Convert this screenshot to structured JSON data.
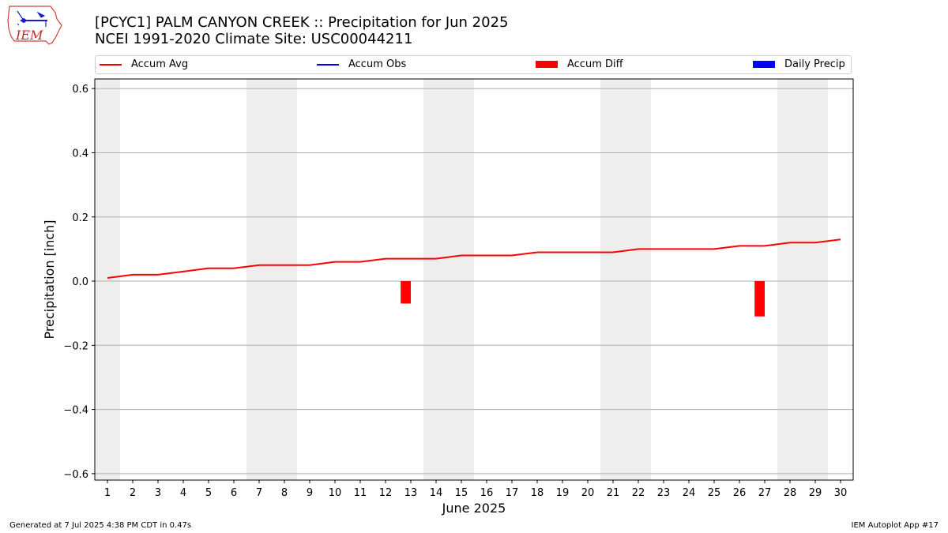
{
  "logo": {
    "text": "IEM"
  },
  "footer": {
    "generated": "Generated at 7 Jul 2025 4:38 PM CDT in 0.47s",
    "app": "IEM Autoplot App #17"
  },
  "colors": {
    "avg": "#ff0000",
    "obs": "#0000ff",
    "diff": "#ff0000",
    "daily": "#0000ff",
    "weekend": "#eeeeee",
    "grid": "#b0b0b0"
  },
  "chart_data": {
    "type": "line",
    "title": "[PCYC1] PALM CANYON CREEK :: Precipitation for Jun 2025",
    "subtitle": "NCEI 1991-2020 Climate Site: USC00044211",
    "xlabel": "June 2025",
    "ylabel": "Precipitation [inch]",
    "ylim": [
      -0.62,
      0.63
    ],
    "xlim": [
      0.5,
      30.5
    ],
    "yticks": [
      -0.6,
      -0.4,
      -0.2,
      0.0,
      0.2,
      0.4,
      0.6
    ],
    "ytick_labels": [
      "−0.6",
      "−0.4",
      "−0.2",
      "0.0",
      "0.2",
      "0.4",
      "0.6"
    ],
    "x": [
      1,
      2,
      3,
      4,
      5,
      6,
      7,
      8,
      9,
      10,
      11,
      12,
      13,
      14,
      15,
      16,
      17,
      18,
      19,
      20,
      21,
      22,
      23,
      24,
      25,
      26,
      27,
      28,
      29,
      30
    ],
    "xtick_labels": [
      "1",
      "2",
      "3",
      "4",
      "5",
      "6",
      "7",
      "8",
      "9",
      "10",
      "11",
      "12",
      "13",
      "14",
      "15",
      "16",
      "17",
      "18",
      "19",
      "20",
      "21",
      "22",
      "23",
      "24",
      "25",
      "26",
      "27",
      "28",
      "29",
      "30"
    ],
    "weekend_days": [
      1,
      7,
      8,
      14,
      15,
      21,
      22,
      28,
      29
    ],
    "legend": [
      "Accum Avg",
      "Accum Obs",
      "Accum Diff",
      "Daily Precip"
    ],
    "series": [
      {
        "name": "Accum Avg",
        "kind": "line",
        "values": [
          0.01,
          0.02,
          0.02,
          0.03,
          0.04,
          0.04,
          0.05,
          0.05,
          0.05,
          0.06,
          0.06,
          0.07,
          0.07,
          0.07,
          0.08,
          0.08,
          0.08,
          0.09,
          0.09,
          0.09,
          0.09,
          0.1,
          0.1,
          0.1,
          0.1,
          0.11,
          0.11,
          0.12,
          0.12,
          0.13
        ]
      },
      {
        "name": "Accum Diff",
        "kind": "bar",
        "bars": [
          {
            "x": 12.8,
            "value": -0.07
          },
          {
            "x": 26.8,
            "value": -0.11
          }
        ]
      }
    ]
  }
}
